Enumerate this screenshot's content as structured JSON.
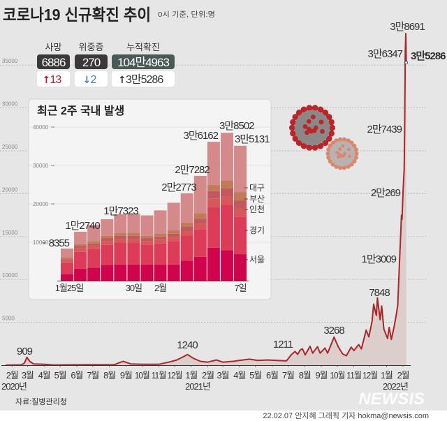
{
  "header": {
    "title": "코로나19 신규확진 추이",
    "subtitle": "0시 기준, 단위:명"
  },
  "stats": [
    {
      "label": "사망",
      "value": "6886",
      "change": "13",
      "direction": "up",
      "arrow": "↑",
      "box_color": "#3a3838",
      "change_color": "#c0192c"
    },
    {
      "label": "위중증",
      "value": "270",
      "change": "2",
      "direction": "down",
      "arrow": "↓",
      "box_color": "#3a3838",
      "change_color": "#4a78b8"
    },
    {
      "label": "누적확진",
      "value": "104만4963",
      "change": "3만5286",
      "direction": "up",
      "arrow": "↑",
      "box_color": "#4a5955",
      "change_color": "#333333"
    }
  ],
  "chart_data": [
    {
      "type": "area",
      "title": "",
      "xlabel": "",
      "ylabel": "",
      "ylim": [
        0,
        39000
      ],
      "yticks": [
        5000,
        10000,
        15000,
        20000,
        25000,
        30000,
        35000
      ],
      "grid": true,
      "line_color": "#a8262c",
      "fill_color": "#dccfcb",
      "x_range": [
        "2020-01-20",
        "2022-02-07"
      ],
      "month_ticks": [
        {
          "date": "2020-02-01",
          "label": "2월"
        },
        {
          "date": "2020-03-01",
          "label": "3월"
        },
        {
          "date": "2020-04-01",
          "label": "4월"
        },
        {
          "date": "2020-05-01",
          "label": "5월"
        },
        {
          "date": "2020-06-01",
          "label": "6월"
        },
        {
          "date": "2020-07-01",
          "label": "7월"
        },
        {
          "date": "2020-08-01",
          "label": "8월"
        },
        {
          "date": "2020-09-01",
          "label": "9월"
        },
        {
          "date": "2020-10-01",
          "label": "10월"
        },
        {
          "date": "2020-11-01",
          "label": "11월"
        },
        {
          "date": "2020-12-01",
          "label": "12월"
        },
        {
          "date": "2021-01-01",
          "label": "1월"
        },
        {
          "date": "2021-02-01",
          "label": "2월"
        },
        {
          "date": "2021-03-01",
          "label": "3월"
        },
        {
          "date": "2021-04-01",
          "label": "4월"
        },
        {
          "date": "2021-05-01",
          "label": "5월"
        },
        {
          "date": "2021-06-01",
          "label": "6월"
        },
        {
          "date": "2021-07-01",
          "label": "7월"
        },
        {
          "date": "2021-08-01",
          "label": "8월"
        },
        {
          "date": "2021-09-01",
          "label": "9월"
        },
        {
          "date": "2021-10-01",
          "label": "10월"
        },
        {
          "date": "2021-11-01",
          "label": "11월"
        },
        {
          "date": "2021-12-01",
          "label": "12월"
        },
        {
          "date": "2022-01-01",
          "label": "1월"
        },
        {
          "date": "2022-02-01",
          "label": "2월"
        }
      ],
      "year_labels": [
        "2020년",
        "2021년",
        "2022년"
      ],
      "points": [
        [
          "2020-01-20",
          1
        ],
        [
          "2020-02-18",
          30
        ],
        [
          "2020-02-24",
          230
        ],
        [
          "2020-02-29",
          909
        ],
        [
          "2020-03-05",
          450
        ],
        [
          "2020-03-12",
          150
        ],
        [
          "2020-04-01",
          100
        ],
        [
          "2020-04-20",
          10
        ],
        [
          "2020-05-10",
          30
        ],
        [
          "2020-06-01",
          40
        ],
        [
          "2020-07-01",
          50
        ],
        [
          "2020-08-10",
          40
        ],
        [
          "2020-08-20",
          300
        ],
        [
          "2020-08-27",
          441
        ],
        [
          "2020-09-10",
          150
        ],
        [
          "2020-10-01",
          100
        ],
        [
          "2020-11-01",
          100
        ],
        [
          "2020-11-20",
          350
        ],
        [
          "2020-12-05",
          600
        ],
        [
          "2020-12-15",
          900
        ],
        [
          "2020-12-25",
          1240
        ],
        [
          "2021-01-05",
          800
        ],
        [
          "2021-01-18",
          450
        ],
        [
          "2021-02-01",
          350
        ],
        [
          "2021-02-17",
          600
        ],
        [
          "2021-03-01",
          350
        ],
        [
          "2021-03-20",
          450
        ],
        [
          "2021-04-01",
          550
        ],
        [
          "2021-04-20",
          700
        ],
        [
          "2021-05-05",
          550
        ],
        [
          "2021-05-25",
          600
        ],
        [
          "2021-06-10",
          550
        ],
        [
          "2021-06-28",
          500
        ],
        [
          "2021-07-07",
          1211
        ],
        [
          "2021-07-14",
          1600
        ],
        [
          "2021-07-19",
          1250
        ],
        [
          "2021-07-24",
          1800
        ],
        [
          "2021-07-28",
          1900
        ],
        [
          "2021-08-02",
          1200
        ],
        [
          "2021-08-11",
          2200
        ],
        [
          "2021-08-16",
          1400
        ],
        [
          "2021-08-25",
          2150
        ],
        [
          "2021-08-30",
          1400
        ],
        [
          "2021-09-08",
          2000
        ],
        [
          "2021-09-13",
          1400
        ],
        [
          "2021-09-25",
          3268
        ],
        [
          "2021-10-03",
          2100
        ],
        [
          "2021-10-11",
          1300
        ],
        [
          "2021-10-18",
          1100
        ],
        [
          "2021-10-27",
          2100
        ],
        [
          "2021-11-01",
          1700
        ],
        [
          "2021-11-10",
          2400
        ],
        [
          "2021-11-15",
          1900
        ],
        [
          "2021-11-24",
          4100
        ],
        [
          "2021-11-29",
          3300
        ],
        [
          "2021-12-05",
          5100
        ],
        [
          "2021-12-08",
          7100
        ],
        [
          "2021-12-13",
          5800
        ],
        [
          "2021-12-15",
          7848
        ],
        [
          "2021-12-20",
          5300
        ],
        [
          "2021-12-23",
          6900
        ],
        [
          "2021-12-27",
          4200
        ],
        [
          "2022-01-03",
          3100
        ],
        [
          "2022-01-06",
          4400
        ],
        [
          "2022-01-10",
          3000
        ],
        [
          "2022-01-15",
          4400
        ],
        [
          "2022-01-19",
          5800
        ],
        [
          "2022-01-22",
          7000
        ],
        [
          "2022-01-26",
          13009
        ],
        [
          "2022-01-27",
          14500
        ],
        [
          "2022-01-29",
          17500
        ],
        [
          "2022-01-30",
          17000
        ],
        [
          "2022-02-01",
          20269
        ],
        [
          "2022-02-03",
          22900
        ],
        [
          "2022-02-04",
          27439
        ],
        [
          "2022-02-05",
          36347
        ],
        [
          "2022-02-06",
          38691
        ],
        [
          "2022-02-07",
          35286
        ]
      ],
      "annotations": [
        {
          "date": "2020-02-29",
          "text": "909"
        },
        {
          "date": "2020-12-25",
          "text": "1240"
        },
        {
          "date": "2021-07-07",
          "text": "1211"
        },
        {
          "date": "2021-09-25",
          "text": "3268"
        },
        {
          "date": "2021-12-15",
          "text": "7848"
        },
        {
          "date": "2022-01-26",
          "text": "1만3009"
        },
        {
          "date": "2022-02-01",
          "text": "2만269"
        },
        {
          "date": "2022-02-04",
          "text": "2만7439"
        },
        {
          "date": "2022-02-05",
          "text": "3만6347"
        },
        {
          "date": "2022-02-06",
          "text": "3만8691"
        },
        {
          "date": "2022-02-07",
          "text": "3만5286"
        }
      ]
    },
    {
      "type": "bar",
      "stacked": true,
      "title": "최근 2주 국내 발생",
      "ylim": [
        0,
        40000
      ],
      "yticks": [
        10000,
        20000,
        30000,
        40000
      ],
      "categories": [
        "1/25",
        "1/26",
        "1/27",
        "1/28",
        "1/29",
        "1/30",
        "1/31",
        "2/1",
        "2/2",
        "2/3",
        "2/4",
        "2/5",
        "2/6",
        "2/7"
      ],
      "x_tick_labels": [
        {
          "index": 0,
          "text": "1월25일"
        },
        {
          "index": 5,
          "text": "30일"
        },
        {
          "index": 7,
          "text": "2월"
        },
        {
          "index": 13,
          "text": "7일"
        }
      ],
      "totals": [
        8355,
        12740,
        14500,
        16000,
        17323,
        17500,
        17000,
        18300,
        20300,
        22773,
        27282,
        36162,
        38502,
        35131
      ],
      "total_labels": [
        {
          "index": 0,
          "text": "8355"
        },
        {
          "index": 1,
          "text": "1만2740"
        },
        {
          "index": 4,
          "text": "1만7323"
        },
        {
          "index": 9,
          "text": "2만2773"
        },
        {
          "index": 10,
          "text": "2만7282"
        },
        {
          "index": 11,
          "text": "3만6162"
        },
        {
          "index": 12,
          "text": "3만8502"
        },
        {
          "index": 13,
          "text": "3만5131"
        }
      ],
      "series": [
        {
          "name": "서울",
          "color": "#d0044c",
          "values": [
            1700,
            3100,
            3400,
            4000,
            4200,
            4200,
            4200,
            4200,
            4200,
            5200,
            6200,
            8600,
            7900,
            6900
          ]
        },
        {
          "name": "경기",
          "color": "#dc3c58",
          "values": [
            2900,
            4400,
            4800,
            5300,
            5700,
            5700,
            5200,
            5500,
            6100,
            6600,
            7200,
            10500,
            11900,
            9800
          ]
        },
        {
          "name": "인천",
          "color": "#d65858",
          "values": [
            600,
            900,
            900,
            1000,
            1000,
            1000,
            900,
            1000,
            1100,
            1200,
            1500,
            2300,
            2200,
            2300
          ]
        },
        {
          "name": "부산",
          "color": "#c25860",
          "values": [
            400,
            600,
            600,
            700,
            800,
            800,
            700,
            800,
            800,
            1000,
            1200,
            1900,
            2000,
            1900
          ]
        },
        {
          "name": "대구",
          "color": "#c07c58",
          "values": [
            400,
            600,
            600,
            700,
            800,
            800,
            700,
            800,
            900,
            1100,
            1500,
            1600,
            2000,
            2100
          ]
        },
        {
          "name": "",
          "color": "#d48a8a",
          "values": [
            2355,
            3140,
            4200,
            4300,
            4823,
            5000,
            5300,
            6000,
            7200,
            7673,
            9682,
            11262,
            12502,
            12131
          ]
        }
      ]
    }
  ],
  "footer": {
    "source": "자료:질병관리청",
    "credit": "22.02.07 안지혜 그래픽 기자 hokma@newsis.com",
    "watermark": "NEWSIS"
  }
}
